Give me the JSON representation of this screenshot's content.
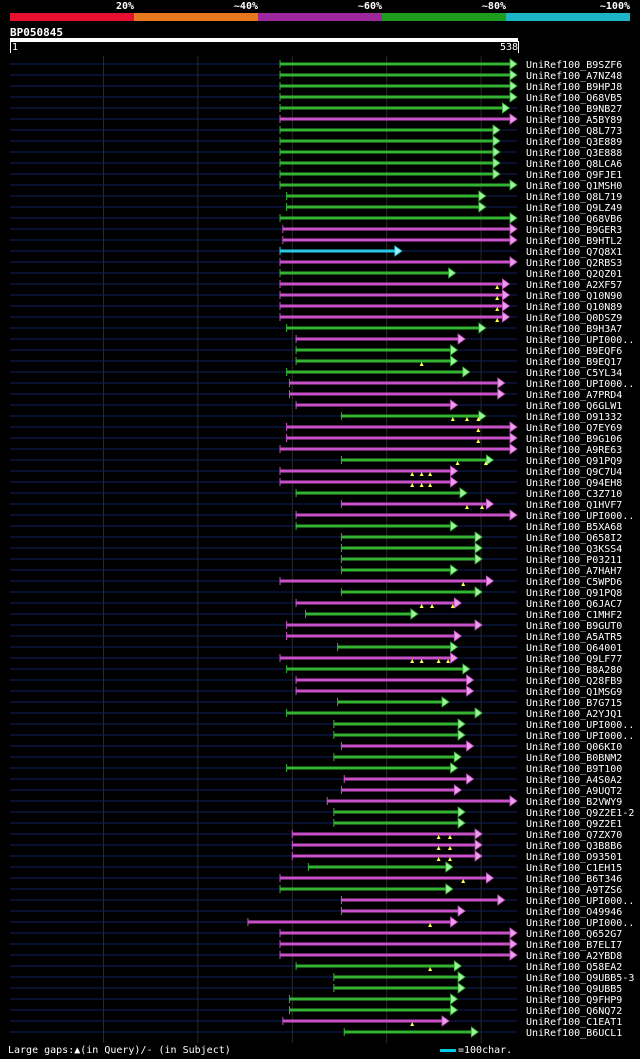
{
  "header": {
    "query_id": "BP050845",
    "tick_start": "1",
    "tick_end": "538",
    "identity_legend": [
      {
        "label": "20%",
        "color": "#e8102e"
      },
      {
        "label": "~40%",
        "color": "#e8781e"
      },
      {
        "label": "~60%",
        "color": "#9c289c"
      },
      {
        "label": "~80%",
        "color": "#1e9c1e"
      },
      {
        "label": "~100%",
        "color": "#1eb4c8"
      }
    ]
  },
  "footer": {
    "gaps_text": "Large gaps:▲(in Query)/- (in Subject)",
    "scale_text": "=100char."
  },
  "colors": {
    "purple": "#c850c8",
    "green": "#32b432",
    "cyan": "#28c8e6",
    "arrow_green": "#a0f0a0",
    "arrow_purple": "#e6a0e6",
    "arrow_cyan": "#a0f0f0",
    "background_line": "#102060",
    "grid": "#2a2a2a",
    "gap_marker": "#ffff50"
  },
  "chart_data": {
    "type": "alignment-map",
    "query_length": 538,
    "hits": [
      {
        "name": "UniRef100_B9SZF6",
        "start": 287,
        "end": 538,
        "color": "green",
        "gaps": []
      },
      {
        "name": "UniRef100_A7NZ48",
        "start": 287,
        "end": 538,
        "color": "green",
        "gaps": []
      },
      {
        "name": "UniRef100_B9HPJ8",
        "start": 287,
        "end": 538,
        "color": "green",
        "gaps": []
      },
      {
        "name": "UniRef100_Q68VB5",
        "start": 287,
        "end": 538,
        "color": "green",
        "gaps": []
      },
      {
        "name": "UniRef100_B9NB27",
        "start": 287,
        "end": 530,
        "color": "green",
        "gaps": []
      },
      {
        "name": "UniRef100_A5BY89",
        "start": 287,
        "end": 538,
        "color": "purple",
        "gaps": []
      },
      {
        "name": "UniRef100_Q8L773",
        "start": 287,
        "end": 520,
        "color": "green",
        "gaps": []
      },
      {
        "name": "UniRef100_Q3E889",
        "start": 287,
        "end": 520,
        "color": "green",
        "gaps": []
      },
      {
        "name": "UniRef100_Q3E888",
        "start": 287,
        "end": 520,
        "color": "green",
        "gaps": []
      },
      {
        "name": "UniRef100_Q8LCA6",
        "start": 287,
        "end": 520,
        "color": "green",
        "gaps": []
      },
      {
        "name": "UniRef100_Q9FJE1",
        "start": 287,
        "end": 520,
        "color": "green",
        "gaps": []
      },
      {
        "name": "UniRef100_Q1MSH0",
        "start": 287,
        "end": 538,
        "color": "green",
        "gaps": []
      },
      {
        "name": "UniRef100_Q8L719",
        "start": 294,
        "end": 505,
        "color": "green",
        "gaps": []
      },
      {
        "name": "UniRef100_Q9LZ49",
        "start": 294,
        "end": 505,
        "color": "green",
        "gaps": []
      },
      {
        "name": "UniRef100_Q68VB6",
        "start": 287,
        "end": 538,
        "color": "green",
        "gaps": []
      },
      {
        "name": "UniRef100_B9GER3",
        "start": 290,
        "end": 538,
        "color": "purple",
        "gaps": []
      },
      {
        "name": "UniRef100_B9HTL2",
        "start": 290,
        "end": 538,
        "color": "purple",
        "gaps": []
      },
      {
        "name": "UniRef100_Q7Q8X1",
        "start": 287,
        "end": 416,
        "color": "cyan",
        "gaps": []
      },
      {
        "name": "UniRef100_Q2RBS3",
        "start": 287,
        "end": 538,
        "color": "purple",
        "gaps": []
      },
      {
        "name": "UniRef100_Q2QZ01",
        "start": 287,
        "end": 473,
        "color": "green",
        "gaps": []
      },
      {
        "name": "UniRef100_A2XF57",
        "start": 287,
        "end": 530,
        "color": "purple",
        "gaps": [
          517
        ]
      },
      {
        "name": "UniRef100_Q10N90",
        "start": 287,
        "end": 530,
        "color": "purple",
        "gaps": [
          517
        ]
      },
      {
        "name": "UniRef100_Q10N89",
        "start": 287,
        "end": 530,
        "color": "purple",
        "gaps": [
          517
        ]
      },
      {
        "name": "UniRef100_Q0DSZ9",
        "start": 287,
        "end": 530,
        "color": "purple",
        "gaps": [
          517
        ]
      },
      {
        "name": "UniRef100_B9H3A7",
        "start": 294,
        "end": 505,
        "color": "green",
        "gaps": []
      },
      {
        "name": "UniRef100_UPI000..",
        "start": 304,
        "end": 483,
        "color": "purple",
        "gaps": []
      },
      {
        "name": "UniRef100_B9EQF6",
        "start": 304,
        "end": 475,
        "color": "green",
        "gaps": []
      },
      {
        "name": "UniRef100_B9EQ17",
        "start": 304,
        "end": 475,
        "color": "green",
        "gaps": [
          437
        ]
      },
      {
        "name": "UniRef100_C5YL34",
        "start": 294,
        "end": 488,
        "color": "green",
        "gaps": []
      },
      {
        "name": "UniRef100_UPI000..",
        "start": 297,
        "end": 525,
        "color": "purple",
        "gaps": []
      },
      {
        "name": "UniRef100_A7PRD4",
        "start": 297,
        "end": 525,
        "color": "purple",
        "gaps": []
      },
      {
        "name": "UniRef100_Q6GLW1",
        "start": 304,
        "end": 475,
        "color": "purple",
        "gaps": []
      },
      {
        "name": "UniRef100_O91332",
        "start": 352,
        "end": 505,
        "color": "green",
        "gaps": [
          470,
          485,
          497
        ]
      },
      {
        "name": "UniRef100_Q7EY69",
        "start": 294,
        "end": 538,
        "color": "purple",
        "gaps": [
          497
        ]
      },
      {
        "name": "UniRef100_B9G106",
        "start": 294,
        "end": 538,
        "color": "purple",
        "gaps": [
          497
        ]
      },
      {
        "name": "UniRef100_A9RE63",
        "start": 287,
        "end": 538,
        "color": "purple",
        "gaps": []
      },
      {
        "name": "UniRef100_Q91PQ9",
        "start": 352,
        "end": 513,
        "color": "green",
        "gaps": [
          475,
          505
        ]
      },
      {
        "name": "UniRef100_Q9C7U4",
        "start": 287,
        "end": 475,
        "color": "purple",
        "gaps": [
          427,
          437,
          446
        ]
      },
      {
        "name": "UniRef100_Q94EH8",
        "start": 287,
        "end": 475,
        "color": "purple",
        "gaps": [
          427,
          437,
          446
        ]
      },
      {
        "name": "UniRef100_C3Z710",
        "start": 304,
        "end": 485,
        "color": "green",
        "gaps": []
      },
      {
        "name": "UniRef100_Q1HVF7",
        "start": 352,
        "end": 513,
        "color": "purple",
        "gaps": [
          485,
          501
        ]
      },
      {
        "name": "UniRef100_UPI000..",
        "start": 304,
        "end": 538,
        "color": "purple",
        "gaps": []
      },
      {
        "name": "UniRef100_B5XA68",
        "start": 304,
        "end": 475,
        "color": "green",
        "gaps": []
      },
      {
        "name": "UniRef100_Q658I2",
        "start": 352,
        "end": 501,
        "color": "green",
        "gaps": []
      },
      {
        "name": "UniRef100_Q3KSS4",
        "start": 352,
        "end": 501,
        "color": "green",
        "gaps": []
      },
      {
        "name": "UniRef100_P03211",
        "start": 352,
        "end": 501,
        "color": "green",
        "gaps": []
      },
      {
        "name": "UniRef100_A7HAH7",
        "start": 352,
        "end": 475,
        "color": "green",
        "gaps": []
      },
      {
        "name": "UniRef100_C5WPD6",
        "start": 287,
        "end": 513,
        "color": "purple",
        "gaps": [
          481
        ]
      },
      {
        "name": "UniRef100_Q91PQ8",
        "start": 352,
        "end": 501,
        "color": "green",
        "gaps": []
      },
      {
        "name": "UniRef100_Q6JAC7",
        "start": 304,
        "end": 479,
        "color": "purple",
        "gaps": [
          437,
          448,
          470
        ]
      },
      {
        "name": "UniRef100_C1MHF2",
        "start": 314,
        "end": 433,
        "color": "green",
        "gaps": []
      },
      {
        "name": "UniRef100_B9GUT0",
        "start": 294,
        "end": 501,
        "color": "purple",
        "gaps": []
      },
      {
        "name": "UniRef100_A5ATR5",
        "start": 294,
        "end": 479,
        "color": "purple",
        "gaps": []
      },
      {
        "name": "UniRef100_Q64001",
        "start": 348,
        "end": 475,
        "color": "green",
        "gaps": []
      },
      {
        "name": "UniRef100_Q9LF77",
        "start": 287,
        "end": 475,
        "color": "purple",
        "gaps": [
          427,
          437,
          455,
          465
        ]
      },
      {
        "name": "UniRef100_B8A280",
        "start": 294,
        "end": 488,
        "color": "green",
        "gaps": []
      },
      {
        "name": "UniRef100_Q28FB9",
        "start": 304,
        "end": 492,
        "color": "purple",
        "gaps": []
      },
      {
        "name": "UniRef100_Q1MSG9",
        "start": 304,
        "end": 492,
        "color": "purple",
        "gaps": []
      },
      {
        "name": "UniRef100_B7G715",
        "start": 348,
        "end": 466,
        "color": "green",
        "gaps": []
      },
      {
        "name": "UniRef100_A2YJQ1",
        "start": 294,
        "end": 501,
        "color": "green",
        "gaps": []
      },
      {
        "name": "UniRef100_UPI000..",
        "start": 344,
        "end": 483,
        "color": "green",
        "gaps": []
      },
      {
        "name": "UniRef100_UPI000..",
        "start": 344,
        "end": 483,
        "color": "green",
        "gaps": []
      },
      {
        "name": "UniRef100_Q06KI0",
        "start": 352,
        "end": 492,
        "color": "purple",
        "gaps": []
      },
      {
        "name": "UniRef100_B0BNM2",
        "start": 344,
        "end": 479,
        "color": "green",
        "gaps": []
      },
      {
        "name": "UniRef100_B9T100",
        "start": 294,
        "end": 475,
        "color": "green",
        "gaps": []
      },
      {
        "name": "UniRef100_A4S0A2",
        "start": 355,
        "end": 492,
        "color": "purple",
        "gaps": []
      },
      {
        "name": "UniRef100_A9UQT2",
        "start": 352,
        "end": 479,
        "color": "purple",
        "gaps": []
      },
      {
        "name": "UniRef100_B2VWY9",
        "start": 337,
        "end": 538,
        "color": "purple",
        "gaps": []
      },
      {
        "name": "UniRef100_Q9Z2E1-2",
        "start": 344,
        "end": 483,
        "color": "green",
        "gaps": []
      },
      {
        "name": "UniRef100_Q9Z2E1",
        "start": 344,
        "end": 483,
        "color": "green",
        "gaps": []
      },
      {
        "name": "UniRef100_Q7ZX70",
        "start": 300,
        "end": 501,
        "color": "purple",
        "gaps": [
          455,
          467
        ]
      },
      {
        "name": "UniRef100_Q3B8B6",
        "start": 300,
        "end": 501,
        "color": "purple",
        "gaps": [
          455,
          467
        ]
      },
      {
        "name": "UniRef100_O93501",
        "start": 300,
        "end": 501,
        "color": "purple",
        "gaps": [
          455,
          467
        ]
      },
      {
        "name": "UniRef100_C1EH15",
        "start": 317,
        "end": 470,
        "color": "green",
        "gaps": []
      },
      {
        "name": "UniRef100_B6T346",
        "start": 287,
        "end": 513,
        "color": "purple",
        "gaps": [
          481
        ]
      },
      {
        "name": "UniRef100_A9TZS6",
        "start": 287,
        "end": 470,
        "color": "green",
        "gaps": []
      },
      {
        "name": "UniRef100_UPI000..",
        "start": 352,
        "end": 525,
        "color": "purple",
        "gaps": []
      },
      {
        "name": "UniRef100_O49946",
        "start": 352,
        "end": 483,
        "color": "purple",
        "gaps": []
      },
      {
        "name": "UniRef100_UPI000..",
        "start": 253,
        "end": 475,
        "color": "purple",
        "gaps": [
          446
        ]
      },
      {
        "name": "UniRef100_Q652G7",
        "start": 287,
        "end": 538,
        "color": "purple",
        "gaps": []
      },
      {
        "name": "UniRef100_B7ELI7",
        "start": 287,
        "end": 538,
        "color": "purple",
        "gaps": []
      },
      {
        "name": "UniRef100_A2YBD8",
        "start": 287,
        "end": 538,
        "color": "purple",
        "gaps": []
      },
      {
        "name": "UniRef100_Q58EA2",
        "start": 304,
        "end": 479,
        "color": "green",
        "gaps": [
          446
        ]
      },
      {
        "name": "UniRef100_Q9UBB5-3",
        "start": 344,
        "end": 483,
        "color": "green",
        "gaps": []
      },
      {
        "name": "UniRef100_Q9UBB5",
        "start": 344,
        "end": 483,
        "color": "green",
        "gaps": []
      },
      {
        "name": "UniRef100_Q9FHP9",
        "start": 297,
        "end": 475,
        "color": "green",
        "gaps": []
      },
      {
        "name": "UniRef100_Q6NQ72",
        "start": 297,
        "end": 475,
        "color": "green",
        "gaps": []
      },
      {
        "name": "UniRef100_C1EAT1",
        "start": 290,
        "end": 466,
        "color": "purple",
        "gaps": [
          427
        ]
      },
      {
        "name": "UniRef100_B6UCL1",
        "start": 355,
        "end": 497,
        "color": "green",
        "gaps": []
      }
    ]
  }
}
